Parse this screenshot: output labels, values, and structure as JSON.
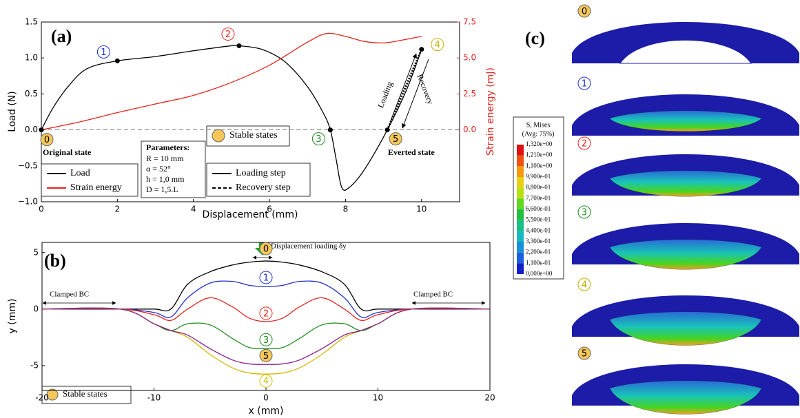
{
  "chart_data": [
    {
      "type": "line",
      "panel": "(a)",
      "x_label": "Displacement (mm)",
      "y_label": "Load (N)",
      "y2_label": "Strain energy (mJ)",
      "xlim": [
        0,
        11
      ],
      "xticks": [
        0,
        2,
        4,
        6,
        8,
        10
      ],
      "ylim": [
        -1,
        1.5
      ],
      "yticks": [
        {
          "value": -1,
          "label": "−1.0"
        },
        {
          "value": -0.5,
          "label": "−0.5"
        },
        {
          "value": 0,
          "label": "0.0"
        },
        {
          "value": 0.5,
          "label": "0.5"
        },
        {
          "value": 1,
          "label": "1.0"
        },
        {
          "value": 1.5,
          "label": "1.5"
        }
      ],
      "y2lim": [
        -5,
        7.5
      ],
      "y2ticks": [
        {
          "value": 0,
          "label": "0.0"
        },
        {
          "value": 2.5,
          "label": "2.5"
        },
        {
          "value": 5,
          "label": "5.0"
        },
        {
          "value": 7.5,
          "label": "7.5"
        }
      ],
      "zero_line": true,
      "series": [
        {
          "name": "Load",
          "color": "#000000",
          "x": [
            0,
            0.3,
            0.7,
            1.2,
            2,
            3,
            4,
            5,
            5.2,
            5.8,
            6.4,
            7,
            7.4,
            7.6,
            7.75,
            7.9,
            8.1,
            8.5,
            9.1,
            9.6,
            10
          ],
          "values": [
            0,
            0.3,
            0.6,
            0.85,
            0.96,
            1.02,
            1.1,
            1.17,
            1.17,
            1.12,
            0.95,
            0.6,
            0.25,
            0,
            -0.4,
            -0.8,
            -0.8,
            -0.55,
            0,
            0.55,
            1.12
          ]
        },
        {
          "name": "Strain energy",
          "color": "#e8221c",
          "axis": "y2",
          "x": [
            0,
            1,
            2,
            3,
            4,
            5,
            6,
            7,
            7.5,
            8,
            8.5,
            9,
            9.5,
            10
          ],
          "values": [
            0,
            0.55,
            1.2,
            1.8,
            2.4,
            3.3,
            4.5,
            6.1,
            6.7,
            6.5,
            6.15,
            6.05,
            6.25,
            6.5
          ]
        },
        {
          "color": "#000000",
          "dash": true,
          "x": [
            9.1,
            10
          ],
          "values": [
            0,
            1.12
          ]
        }
      ],
      "points": {
        "labels": [
          "0",
          "1",
          "2",
          "3",
          "4",
          "5"
        ],
        "x": [
          0,
          2,
          5.2,
          7.6,
          10,
          9.1
        ],
        "y": [
          0,
          0.96,
          1.17,
          0,
          1.12,
          0
        ],
        "colors": [
          "#000000",
          "#1f2fd0",
          "#e8221c",
          "#1a8a1a",
          "#c9a800",
          "#8b1a8b"
        ],
        "stable": [
          true,
          false,
          false,
          false,
          false,
          true
        ]
      },
      "annotations": {
        "original": "Original state",
        "everted": "Everted state",
        "loading": "Loading",
        "recovery": "Recovery"
      },
      "parameters": [
        "Parameters:",
        "R = 10 mm",
        "α = 52°",
        "h = 1,0 mm",
        "D = 1,5.L"
      ],
      "stable_legend": "Stable states",
      "step_legend": [
        "Loading step",
        "Recovery step"
      ]
    },
    {
      "type": "line",
      "panel": "(b)",
      "x_label": "x (mm)",
      "y_label": "y (mm)",
      "xlim": [
        -20,
        20
      ],
      "xticks": [
        -20,
        -10,
        0,
        10,
        20
      ],
      "ylim": [
        -7.2,
        5.9
      ],
      "yticks": [
        -5,
        0,
        5
      ],
      "x": [
        -20,
        -13,
        -10,
        -8.5,
        -7,
        -5,
        -3,
        -1.5,
        0,
        1.5,
        3,
        5,
        7,
        8.5,
        10,
        13,
        20
      ],
      "series": [
        {
          "name": "0",
          "color": "#000000",
          "stable": true,
          "values": [
            0,
            0,
            0,
            0,
            2.2,
            3.3,
            3.9,
            4.15,
            4.25,
            4.15,
            3.9,
            3.3,
            2.2,
            0,
            0,
            0,
            0
          ]
        },
        {
          "name": "1",
          "color": "#1f2fd0",
          "values": [
            0,
            0,
            -0.3,
            -0.7,
            1.0,
            2.3,
            2.45,
            2.1,
            2.0,
            2.1,
            2.45,
            2.3,
            1.0,
            -0.7,
            -0.3,
            0,
            0
          ]
        },
        {
          "name": "2",
          "color": "#e8221c",
          "values": [
            0,
            0,
            -0.5,
            -1.0,
            0,
            1.0,
            0.2,
            -0.8,
            -1.1,
            -0.8,
            0.2,
            1.0,
            0,
            -1.0,
            -0.5,
            0,
            0
          ]
        },
        {
          "name": "3",
          "color": "#1a8a1a",
          "values": [
            0,
            0,
            -1.3,
            -1.9,
            -1.3,
            -1.4,
            -2.6,
            -3.4,
            -3.5,
            -3.4,
            -2.6,
            -1.4,
            -1.3,
            -1.9,
            -1.3,
            0,
            0
          ]
        },
        {
          "name": "4",
          "color": "#d4b800",
          "values": [
            0,
            0,
            -1.3,
            -1.9,
            -2.5,
            -4.0,
            -5.2,
            -5.65,
            -5.75,
            -5.65,
            -5.2,
            -4.0,
            -2.5,
            -1.9,
            -1.3,
            0,
            0
          ]
        },
        {
          "name": "5",
          "color": "#8b1a8b",
          "stable": true,
          "values": [
            0,
            0,
            -1.3,
            -1.9,
            -2.3,
            -3.5,
            -4.5,
            -4.85,
            -4.9,
            -4.85,
            -4.5,
            -3.5,
            -2.3,
            -1.9,
            -1.3,
            0,
            0
          ]
        }
      ],
      "annotations": {
        "loading": "Displacement loading δy",
        "clamped_left": "Clamped BC",
        "clamped_right": "Clamped BC"
      },
      "stable_legend": "Stable states"
    }
  ],
  "contour_panel": {
    "panel": "(c)",
    "legend_title": [
      "S, Mises",
      "(Avg: 75%)"
    ],
    "legend_ticks": [
      "1,320e+00",
      "1,210e+00",
      "1,100e+00",
      "9,900e-01",
      "8,800e-01",
      "7,700e-01",
      "6,600e-01",
      "5,500e-01",
      "4,400e-01",
      "3,300e-01",
      "2,200e-01",
      "1,100e-01",
      "0,000e+00"
    ],
    "states": [
      {
        "label": "0",
        "color": "#000000",
        "stable": true
      },
      {
        "label": "1",
        "color": "#1f2fd0"
      },
      {
        "label": "2",
        "color": "#e8221c"
      },
      {
        "label": "3",
        "color": "#1a8a1a"
      },
      {
        "label": "4",
        "color": "#c9a800"
      },
      {
        "label": "5",
        "color": "#8b1a8b",
        "stable": true
      }
    ]
  }
}
